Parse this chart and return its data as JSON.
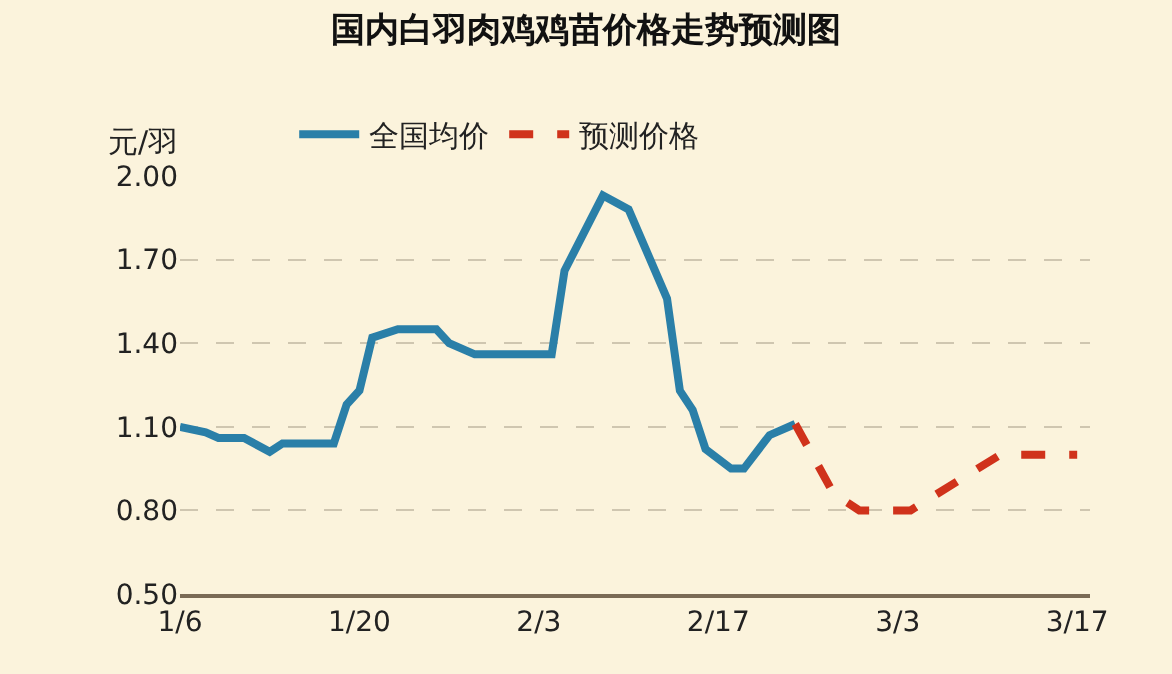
{
  "chart_data": {
    "type": "line",
    "title": "国内白羽肉鸡鸡苗价格走势预测图",
    "ylabel": "元/羽",
    "series": [
      {
        "name": "全国均价",
        "color": "#2a7fa8",
        "line_style": "solid",
        "x": [
          "--01-06",
          "--01-08",
          "--01-09",
          "--01-11",
          "--01-13",
          "--01-14",
          "--01-18",
          "--01-19",
          "--01-20",
          "--01-21",
          "--01-23",
          "--01-26",
          "--01-27",
          "--01-29",
          "--02-04",
          "--02-05",
          "--02-08",
          "--02-10",
          "--02-13",
          "--02-14",
          "--02-15",
          "--02-16",
          "--02-18",
          "--02-19",
          "--02-21",
          "--02-23"
        ],
        "values": [
          1.1,
          1.08,
          1.06,
          1.06,
          1.01,
          1.04,
          1.04,
          1.18,
          1.23,
          1.42,
          1.45,
          1.45,
          1.4,
          1.36,
          1.36,
          1.66,
          1.93,
          1.88,
          1.56,
          1.23,
          1.16,
          1.02,
          0.95,
          0.95,
          1.07,
          1.11
        ]
      },
      {
        "name": "预测价格",
        "color": "#d0321b",
        "line_style": "dashed",
        "x": [
          "--02-23",
          "--02-26",
          "--02-28",
          "--03-04",
          "--03-11",
          "--03-17"
        ],
        "values": [
          1.11,
          0.86,
          0.8,
          0.8,
          1.0,
          1.0
        ]
      }
    ],
    "xlim": [
      "--01-06",
      "--03-18"
    ],
    "xticks": [
      {
        "value": "--01-06",
        "label": "1/6"
      },
      {
        "value": "--01-20",
        "label": "1/20"
      },
      {
        "value": "--02-03",
        "label": "2/3"
      },
      {
        "value": "--02-17",
        "label": "2/17"
      },
      {
        "value": "--03-03",
        "label": "3/3"
      },
      {
        "value": "--03-17",
        "label": "3/17"
      }
    ],
    "ylim": [
      0.5,
      2.0
    ],
    "yticks": [
      {
        "value": 0.5,
        "label": "0.50"
      },
      {
        "value": 0.8,
        "label": "0.80"
      },
      {
        "value": 1.1,
        "label": "1.10"
      },
      {
        "value": 1.4,
        "label": "1.40"
      },
      {
        "value": 1.7,
        "label": "1.70"
      },
      {
        "value": 2.0,
        "label": "2.00"
      }
    ],
    "grid": "y",
    "legend": "top",
    "marker": "none"
  }
}
